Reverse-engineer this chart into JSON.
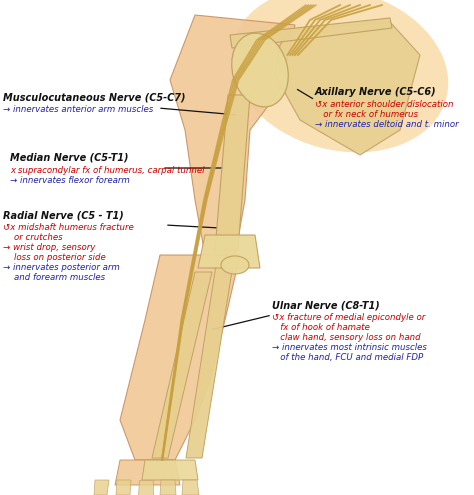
{
  "background_color": "#ffffff",
  "figsize": [
    4.74,
    4.95
  ],
  "dpi": 100,
  "arm_skin": "#f0c896",
  "arm_skin_dark": "#e8b878",
  "arm_skin_edge": "#c89060",
  "shoulder_glow": "#f5c878",
  "bone_color": "#e8d090",
  "bone_edge": "#c0a060",
  "nerve_color": "#c8a040",
  "nerve_dark": "#a07820",
  "text_black": "#111111",
  "text_red": "#cc0000",
  "text_blue": "#2222aa",
  "nerve_fontsize": 7.0,
  "detail_fontsize": 6.2,
  "musculo_title": "Musculocutaneous Nerve (C5-C7)",
  "musculo_detail1": "→ innervates anterior arm muscles",
  "median_title": "Median Nerve (C5-T1)",
  "median_detail1": "x supracondylar fx of humerus, carpal tunnel",
  "median_detail2": "→ innervates flexor forearm",
  "radial_title": "Radial Nerve (C5 - T1)",
  "radial_detail1": "↺x midshaft humerus fracture",
  "radial_detail2": "    or crutches",
  "radial_detail3": "→ wrist drop, sensory",
  "radial_detail4": "    loss on posterior side",
  "radial_detail5": "→ innervates posterior arm",
  "radial_detail6": "    and forearm muscles",
  "axillary_title": "Axillary Nerve (C5-C6)",
  "axillary_detail1": "↺x anterior shoulder dislocation",
  "axillary_detail2": "   or fx neck of humerus",
  "axillary_detail3": "→ innervates deltoid and t. minor",
  "ulnar_title": "Ulnar Nerve (C8-T1)",
  "ulnar_detail1": "↺x fracture of medial epicondyle or",
  "ulnar_detail2": "   fx of hook of hamate",
  "ulnar_detail3": "   claw hand, sensory loss on hand",
  "ulnar_detail4": "→ innervates most intrinsic muscles",
  "ulnar_detail5": "   of the hand, FCU and medial FDP"
}
